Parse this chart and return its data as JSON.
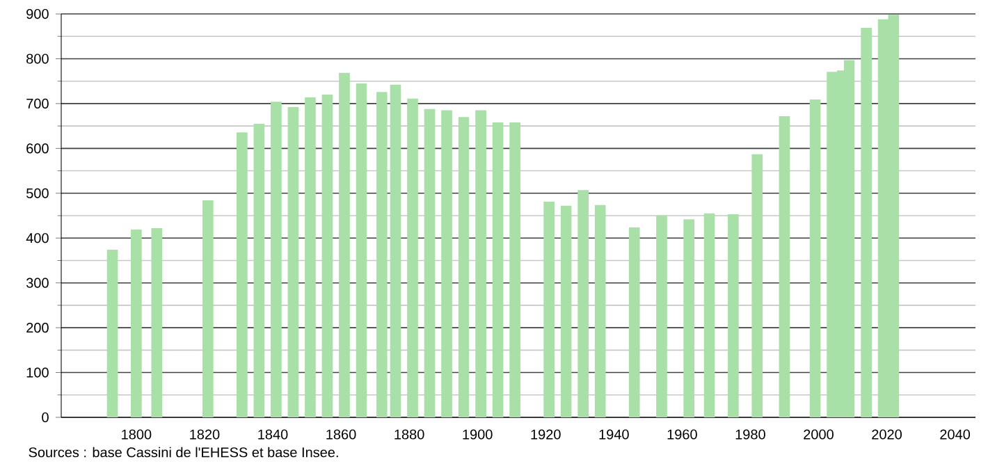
{
  "chart_data": {
    "type": "bar",
    "x": [
      1793,
      1800,
      1806,
      1821,
      1831,
      1836,
      1841,
      1846,
      1851,
      1856,
      1861,
      1866,
      1872,
      1876,
      1881,
      1886,
      1891,
      1896,
      1901,
      1906,
      1911,
      1921,
      1926,
      1931,
      1936,
      1946,
      1954,
      1962,
      1968,
      1975,
      1982,
      1990,
      1999,
      2004,
      2007,
      2009,
      2014,
      2019,
      2022
    ],
    "values": [
      374,
      419,
      422,
      484,
      636,
      655,
      704,
      692,
      714,
      720,
      769,
      745,
      726,
      742,
      711,
      688,
      685,
      670,
      685,
      658,
      658,
      481,
      472,
      507,
      474,
      424,
      450,
      442,
      455,
      453,
      587,
      672,
      709,
      771,
      774,
      797,
      869,
      888,
      898
    ],
    "color": "#a8e0a8",
    "xlim": [
      1778,
      2046
    ],
    "ylim": [
      0,
      900
    ],
    "xticks": [
      1800,
      1820,
      1840,
      1860,
      1880,
      1900,
      1920,
      1940,
      1960,
      1980,
      2000,
      2020,
      2040
    ],
    "yticks": [
      0,
      100,
      200,
      300,
      400,
      500,
      600,
      700,
      800,
      900
    ],
    "grid": "y",
    "annotations": [
      "Sources : base Cassini de l'EHESS et base Insee."
    ]
  }
}
